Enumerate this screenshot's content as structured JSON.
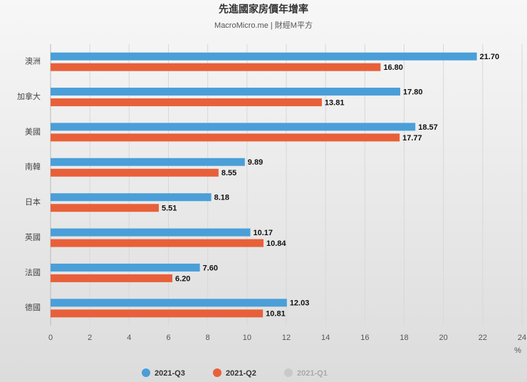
{
  "chart_data": {
    "type": "bar",
    "orientation": "horizontal",
    "title": "先進國家房價年增率",
    "subtitle": "MacroMicro.me | 財經M平方",
    "x_unit": "%",
    "categories": [
      "澳洲",
      "加拿大",
      "美國",
      "南韓",
      "日本",
      "英國",
      "法國",
      "德國"
    ],
    "series": [
      {
        "name": "2021-Q3",
        "color": "#4a9fd8",
        "values": [
          21.7,
          17.8,
          18.57,
          9.89,
          8.18,
          10.17,
          7.6,
          12.03
        ],
        "value_labels": [
          "21.70",
          "17.80",
          "18.57",
          "9.89",
          "8.18",
          "10.17",
          "7.60",
          "12.03"
        ]
      },
      {
        "name": "2021-Q2",
        "color": "#e8603a",
        "values": [
          16.8,
          13.81,
          17.77,
          8.55,
          5.51,
          10.84,
          6.2,
          10.81
        ],
        "value_labels": [
          "16.80",
          "13.81",
          "17.77",
          "8.55",
          "5.51",
          "10.84",
          "6.20",
          "10.81"
        ]
      },
      {
        "name": "2021-Q1",
        "color": "#b5b5b5",
        "hidden": true,
        "values": [
          null,
          null,
          null,
          null,
          null,
          null,
          null,
          null
        ]
      }
    ],
    "xlim": [
      0,
      24
    ],
    "xticks": [
      0,
      2,
      4,
      6,
      8,
      10,
      12,
      14,
      16,
      18,
      20,
      22,
      24
    ],
    "grid": true,
    "legend": "bottom"
  }
}
